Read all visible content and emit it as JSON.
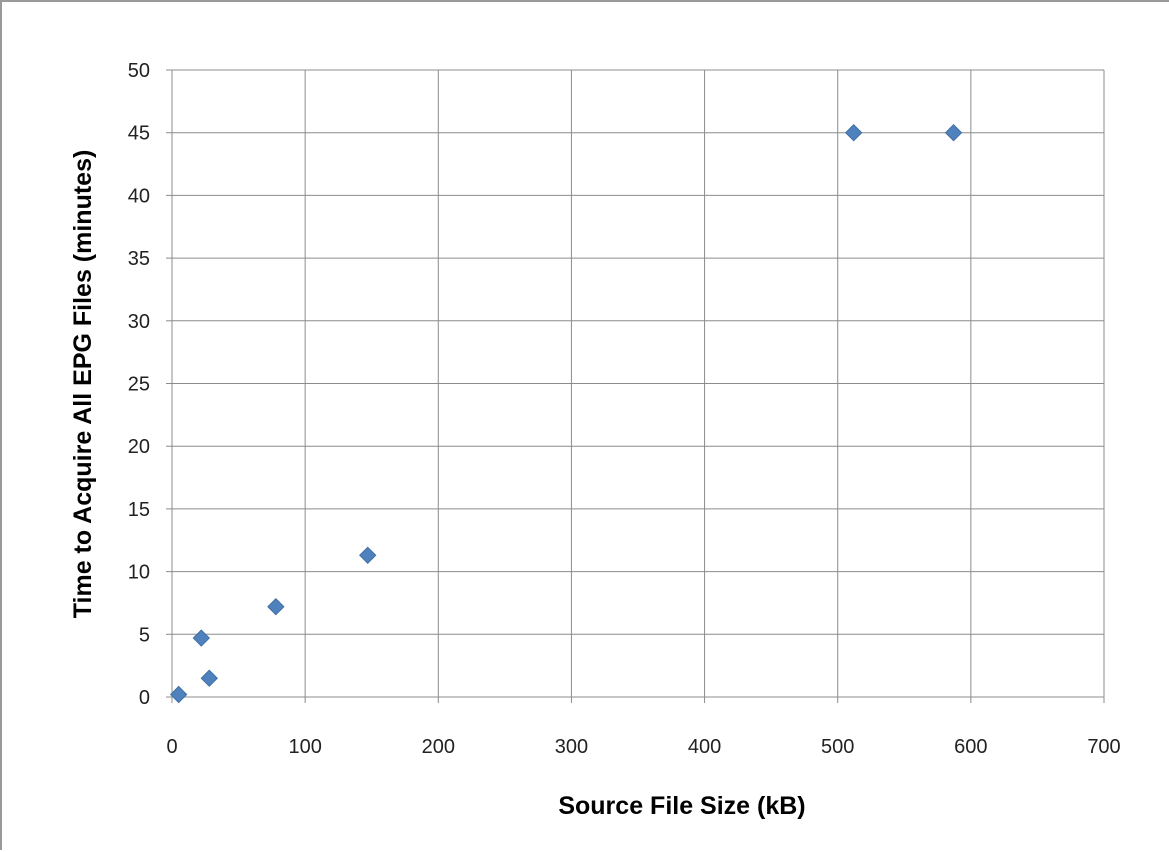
{
  "chart_data": {
    "type": "scatter",
    "title": "",
    "xlabel": "Source File Size (kB)",
    "ylabel": "Time to Acquire All EPG Files (minutes)",
    "xlim": [
      0,
      700
    ],
    "ylim": [
      0,
      50
    ],
    "x_ticks": [
      0,
      100,
      200,
      300,
      400,
      500,
      600,
      700
    ],
    "y_ticks": [
      0,
      5,
      10,
      15,
      20,
      25,
      30,
      35,
      40,
      45,
      50
    ],
    "grid": true,
    "legend": "none",
    "marker": "diamond",
    "marker_color": "#4f81bd",
    "series": [
      {
        "points": [
          {
            "x": 5,
            "y": 0.2
          },
          {
            "x": 22,
            "y": 4.7
          },
          {
            "x": 28,
            "y": 1.5
          },
          {
            "x": 78,
            "y": 7.2
          },
          {
            "x": 147,
            "y": 11.3
          },
          {
            "x": 512,
            "y": 45
          },
          {
            "x": 587,
            "y": 45
          }
        ]
      }
    ]
  }
}
